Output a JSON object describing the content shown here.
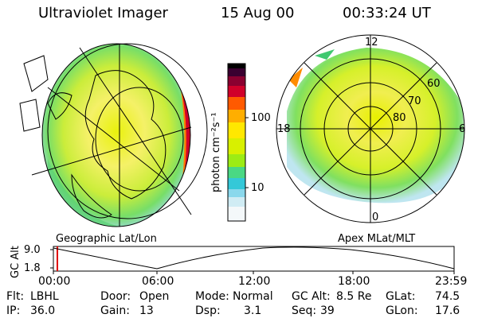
{
  "header": {
    "instrument": "Ultraviolet Imager",
    "date": "15 Aug 00",
    "time": "00:33:24 UT"
  },
  "left_panel": {
    "caption": "Geographic Lat/Lon"
  },
  "right_panel": {
    "caption": "Apex MLat/MLT",
    "mlt_labels": [
      "12",
      "18",
      "6",
      "0"
    ],
    "lat_labels": [
      "60",
      "70",
      "80"
    ]
  },
  "colorbar": {
    "unit": "photon cm⁻²s⁻¹",
    "ticks": [
      "100",
      "10"
    ],
    "colors": [
      "#000000",
      "#3a0030",
      "#8a0030",
      "#d0002a",
      "#ff5a00",
      "#ffae00",
      "#ffe800",
      "#d8f000",
      "#9cec14",
      "#4ad884",
      "#34c8d8",
      "#8ad8ec",
      "#d0ecf4",
      "#f4f8fa"
    ]
  },
  "timeline": {
    "ylabel": "GC Alt",
    "yticks": [
      "9.0",
      "1.8"
    ],
    "xticks": [
      "00:00",
      "06:00",
      "12:00",
      "18:00",
      "23:59"
    ]
  },
  "status": {
    "flt_label": "Flt:",
    "flt_value": "LBHL",
    "ip_label": "IP:",
    "ip_value": "36.0",
    "door_label": "Door:",
    "door_value": "Open",
    "gain_label": "Gain:",
    "gain_value": "13",
    "mode_label": "Mode:",
    "mode_value": "Normal",
    "dsp_label": "Dsp:",
    "dsp_value": "3.1",
    "gcalt_label": "GC Alt:",
    "gcalt_value": "8.5 Re",
    "seq_label": "Seq:",
    "seq_value": "39",
    "glat_label": "GLat:",
    "glat_value": "74.5",
    "glon_label": "GLon:",
    "glon_value": "17.6"
  }
}
